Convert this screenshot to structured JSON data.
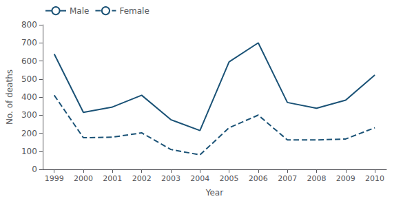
{
  "chart_data": {
    "type": "line",
    "x": [
      1999,
      2000,
      2001,
      2002,
      2003,
      2004,
      2005,
      2006,
      2007,
      2008,
      2009,
      2010
    ],
    "series": [
      {
        "name": "Male",
        "color": "#1a5276",
        "line_style": "solid",
        "values": [
          638,
          315,
          345,
          410,
          275,
          215,
          595,
          700,
          370,
          338,
          383,
          522
        ]
      },
      {
        "name": "Female",
        "color": "#1a5276",
        "line_style": "dashed",
        "values": [
          410,
          175,
          178,
          202,
          110,
          80,
          230,
          300,
          163,
          163,
          168,
          230
        ]
      }
    ],
    "xlabel": "Year",
    "ylabel": "No. of deaths",
    "xlim": [
      1998.6,
      2010.4
    ],
    "xticks": [
      1999,
      2000,
      2001,
      2002,
      2003,
      2004,
      2005,
      2006,
      2007,
      2008,
      2009,
      2010
    ],
    "ylim": [
      0,
      800
    ],
    "yticks": [
      0,
      100,
      200,
      300,
      400,
      500,
      600,
      700,
      800
    ],
    "grid": false,
    "legend": "upper left"
  }
}
